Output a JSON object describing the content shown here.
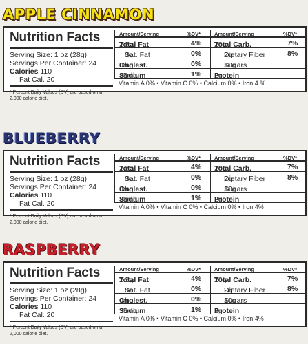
{
  "panels": [
    {
      "flavor": "APPLE CINNAMON",
      "flavor_color": "#f4e114",
      "title": "Nutrition Facts",
      "serving_size": "Serving Size: 1 oz (28g)",
      "servings_per_container": "Servings Per Container: 24",
      "calories_label": "Calories",
      "calories_value": "110",
      "fat_cal": "Fat Cal. 20",
      "footnote": "* Percent Daily Values (DV) are based on a 2,000 calorie diet.",
      "header": {
        "amount": "Amount/Serving",
        "dv": "%DV*"
      },
      "left_rows": [
        {
          "label": "Total Fat",
          "amount": "2.5g",
          "dv": "4%"
        },
        {
          "label": "Sat. Fat",
          "amount": "0g",
          "dv": "0%"
        },
        {
          "label": "Cholest.",
          "amount": "0mg",
          "dv": "0%"
        },
        {
          "label": "Sodium",
          "amount": "35mg",
          "dv": "1%"
        }
      ],
      "right_rows": [
        {
          "label": "Total Carb.",
          "amount": "20g",
          "dv": "7%"
        },
        {
          "label": "Dietary Fiber",
          "amount": "2g",
          "dv": "8%"
        },
        {
          "label": "Sugars",
          "amount": "10g",
          "dv": ""
        },
        {
          "label": "Protein",
          "amount": "2g",
          "dv": ""
        }
      ],
      "vitamins": "Vitamin A 0% • Vitamin C 0% • Calcium 0% • Iron 4 %"
    },
    {
      "flavor": "BLUEBERRY",
      "flavor_color": "#2a3470",
      "title": "Nutrition Facts",
      "serving_size": "Serving Size: 1 oz (28g)",
      "servings_per_container": "Servings Per Container: 24",
      "calories_label": "Calories",
      "calories_value": "110",
      "fat_cal": "Fat Cal. 20",
      "footnote": "* Percent Daily Values (DV) are based on a 2,000 calorie diet.",
      "header": {
        "amount": "Amount/Serving",
        "dv": "%DV*"
      },
      "left_rows": [
        {
          "label": "Total Fat",
          "amount": "2.5g",
          "dv": "4%"
        },
        {
          "label": "Sat. Fat",
          "amount": "0g",
          "dv": "0%"
        },
        {
          "label": "Cholest.",
          "amount": "0mg",
          "dv": "0%"
        },
        {
          "label": "Sodium",
          "amount": "35mg",
          "dv": "1%"
        }
      ],
      "right_rows": [
        {
          "label": "Total Carb.",
          "amount": "20g",
          "dv": "7%"
        },
        {
          "label": "Dietary Fiber",
          "amount": "2g",
          "dv": "8%"
        },
        {
          "label": "Sugars",
          "amount": "10g",
          "dv": ""
        },
        {
          "label": "Protein",
          "amount": "2g",
          "dv": ""
        }
      ],
      "vitamins": "Vitamin A 0% • Vitamin C 0% • Calcium 0% • Iron 4%"
    },
    {
      "flavor": "RASPBERRY",
      "flavor_color": "#c8202a",
      "title": "Nutrition Facts",
      "serving_size": "Serving Size: 1 oz (28g)",
      "servings_per_container": "Servings Per Container: 24",
      "calories_label": "Calories",
      "calories_value": "110",
      "fat_cal": "Fat Cal. 20",
      "footnote": "* Percent Daily Values (DV) are based on a 2,000 calorie diet.",
      "header": {
        "amount": "Amount/Serving",
        "dv": "%DV*"
      },
      "left_rows": [
        {
          "label": "Total Fat",
          "amount": "2.5g",
          "dv": "4%"
        },
        {
          "label": "Sat. Fat",
          "amount": "0g",
          "dv": "0%"
        },
        {
          "label": "Cholest.",
          "amount": "0mg",
          "dv": "0%"
        },
        {
          "label": "Sodium",
          "amount": "35mg",
          "dv": "1%"
        }
      ],
      "right_rows": [
        {
          "label": "Total Carb.",
          "amount": "20g",
          "dv": "7%"
        },
        {
          "label": "Dietary Fiber",
          "amount": "2g",
          "dv": "8%"
        },
        {
          "label": "Sugars",
          "amount": "10g",
          "dv": ""
        },
        {
          "label": "Protein",
          "amount": "2g",
          "dv": ""
        }
      ],
      "vitamins": "Vitamin A 0% • Vitamin C 0% • Calcium 0% • Iron 4%"
    }
  ]
}
